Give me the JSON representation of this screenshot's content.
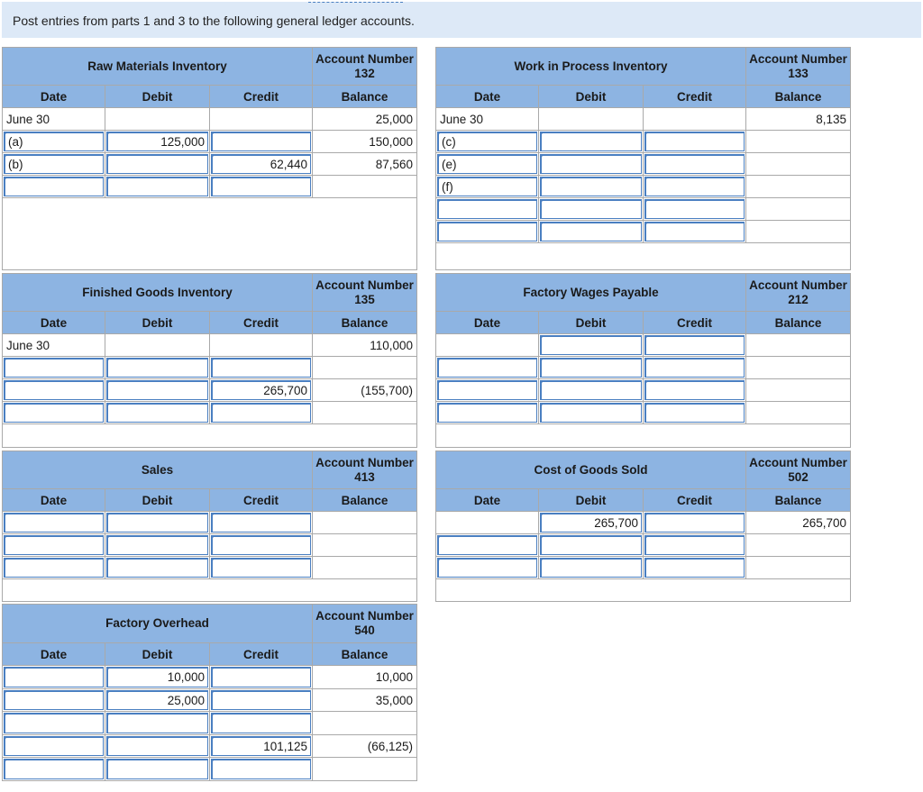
{
  "instruction": "Post entries from parts 1 and 3 to the following general ledger accounts.",
  "headers": {
    "date": "Date",
    "debit": "Debit",
    "credit": "Credit",
    "balance": "Balance"
  },
  "ledgers": {
    "raw_materials": {
      "title": "Raw Materials Inventory",
      "account": "Account Number 132",
      "rows": [
        {
          "date": "June 30",
          "debit": "",
          "credit": "",
          "balance": "25,000"
        },
        {
          "date": "(a)",
          "debit": "125,000",
          "credit": "",
          "balance": "150,000"
        },
        {
          "date": "(b)",
          "debit": "",
          "credit": "62,440",
          "balance": "87,560"
        },
        {
          "date": "",
          "debit": "",
          "credit": "",
          "balance": ""
        }
      ]
    },
    "wip": {
      "title": "Work in Process Inventory",
      "account": "Account Number 133",
      "rows": [
        {
          "date": "June 30",
          "debit": "",
          "credit": "",
          "balance": "8,135"
        },
        {
          "date": "(c)",
          "debit": "",
          "credit": "",
          "balance": ""
        },
        {
          "date": "(e)",
          "debit": "",
          "credit": "",
          "balance": ""
        },
        {
          "date": "(f)",
          "debit": "",
          "credit": "",
          "balance": ""
        },
        {
          "date": "",
          "debit": "",
          "credit": "",
          "balance": ""
        },
        {
          "date": "",
          "debit": "",
          "credit": "",
          "balance": ""
        }
      ]
    },
    "finished_goods": {
      "title": "Finished Goods Inventory",
      "account": "Account Number 135",
      "rows": [
        {
          "date": "June 30",
          "debit": "",
          "credit": "",
          "balance": "110,000"
        },
        {
          "date": "",
          "debit": "",
          "credit": "",
          "balance": ""
        },
        {
          "date": "",
          "debit": "",
          "credit": "265,700",
          "balance": "(155,700)"
        },
        {
          "date": "",
          "debit": "",
          "credit": "",
          "balance": ""
        }
      ]
    },
    "factory_wages": {
      "title": "Factory Wages Payable",
      "account": "Account Number 212",
      "rows": [
        {
          "date": "",
          "debit": "",
          "credit": "",
          "balance": ""
        },
        {
          "date": "",
          "debit": "",
          "credit": "",
          "balance": ""
        },
        {
          "date": "",
          "debit": "",
          "credit": "",
          "balance": ""
        },
        {
          "date": "",
          "debit": "",
          "credit": "",
          "balance": ""
        }
      ]
    },
    "sales": {
      "title": "Sales",
      "account": "Account Number 413",
      "rows": [
        {
          "date": "",
          "debit": "",
          "credit": "",
          "balance": ""
        },
        {
          "date": "",
          "debit": "",
          "credit": "",
          "balance": ""
        },
        {
          "date": "",
          "debit": "",
          "credit": "",
          "balance": ""
        }
      ]
    },
    "cogs": {
      "title": "Cost of Goods Sold",
      "account": "Account Number 502",
      "rows": [
        {
          "date": "",
          "debit": "265,700",
          "credit": "",
          "balance": "265,700"
        },
        {
          "date": "",
          "debit": "",
          "credit": "",
          "balance": ""
        },
        {
          "date": "",
          "debit": "",
          "credit": "",
          "balance": ""
        }
      ]
    },
    "overhead": {
      "title": "Factory Overhead",
      "account": "Account Number 540",
      "rows": [
        {
          "date": "",
          "debit": "10,000",
          "credit": "",
          "balance": "10,000"
        },
        {
          "date": "",
          "debit": "25,000",
          "credit": "",
          "balance": "35,000"
        },
        {
          "date": "",
          "debit": "",
          "credit": "",
          "balance": ""
        },
        {
          "date": "",
          "debit": "",
          "credit": "101,125",
          "balance": "(66,125)"
        },
        {
          "date": "",
          "debit": "",
          "credit": "",
          "balance": ""
        }
      ]
    }
  },
  "colors": {
    "header_bg": "#8db4e2",
    "input_border": "#4a7fc1",
    "instruction_bg": "#dde9f7"
  }
}
